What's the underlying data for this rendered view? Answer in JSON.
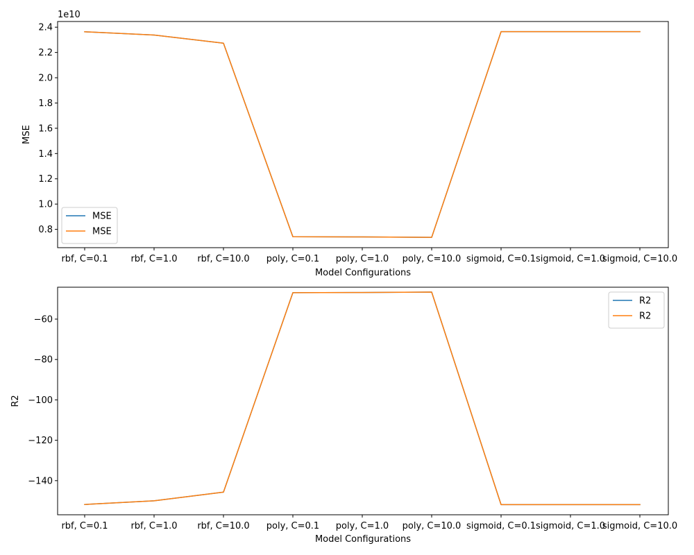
{
  "chart_data": [
    {
      "type": "line",
      "xlabel": "Model Configurations",
      "ylabel": "MSE",
      "y_offset_label": "1e10",
      "categories": [
        "rbf, C=0.1",
        "rbf, C=1.0",
        "rbf, C=10.0",
        "poly, C=0.1",
        "poly, C=1.0",
        "poly, C=10.0",
        "sigmoid, C=0.1",
        "sigmoid, C=1.0",
        "sigmoid, C=10.0"
      ],
      "ylim": [
        0.655,
        2.445
      ],
      "yticks": [
        0.8,
        1.0,
        1.2,
        1.4,
        1.6,
        1.8,
        2.0,
        2.2,
        2.4
      ],
      "ytick_labels": [
        "0.8",
        "1.0",
        "1.2",
        "1.4",
        "1.6",
        "1.8",
        "2.0",
        "2.2",
        "2.4"
      ],
      "legend_position": "lower-left",
      "series": [
        {
          "name": "MSE",
          "color": "#1f77b4",
          "values": [
            2.364,
            2.338,
            2.273,
            0.742,
            0.74,
            0.737,
            2.365,
            2.365,
            2.365
          ]
        },
        {
          "name": "MSE",
          "color": "#ff7f0e",
          "values": [
            2.364,
            2.338,
            2.273,
            0.742,
            0.74,
            0.737,
            2.365,
            2.365,
            2.365
          ]
        }
      ]
    },
    {
      "type": "line",
      "xlabel": "Model Configurations",
      "ylabel": "R2",
      "categories": [
        "rbf, C=0.1",
        "rbf, C=1.0",
        "rbf, C=10.0",
        "poly, C=0.1",
        "poly, C=1.0",
        "poly, C=10.0",
        "sigmoid, C=0.1",
        "sigmoid, C=1.0",
        "sigmoid, C=10.0"
      ],
      "ylim": [
        -156.9,
        -44.2
      ],
      "yticks": [
        -140,
        -120,
        -100,
        -80,
        -60
      ],
      "ytick_labels": [
        "−140",
        "−120",
        "−100",
        "−80",
        "−60"
      ],
      "legend_position": "upper-right",
      "series": [
        {
          "name": "R2",
          "color": "#1f77b4",
          "values": [
            -151.8,
            -150.0,
            -145.7,
            -46.9,
            -46.8,
            -46.6,
            -151.9,
            -151.9,
            -151.9
          ]
        },
        {
          "name": "R2",
          "color": "#ff7f0e",
          "values": [
            -151.8,
            -150.0,
            -145.7,
            -46.9,
            -46.8,
            -46.6,
            -151.9,
            -151.9,
            -151.9
          ]
        }
      ]
    }
  ]
}
